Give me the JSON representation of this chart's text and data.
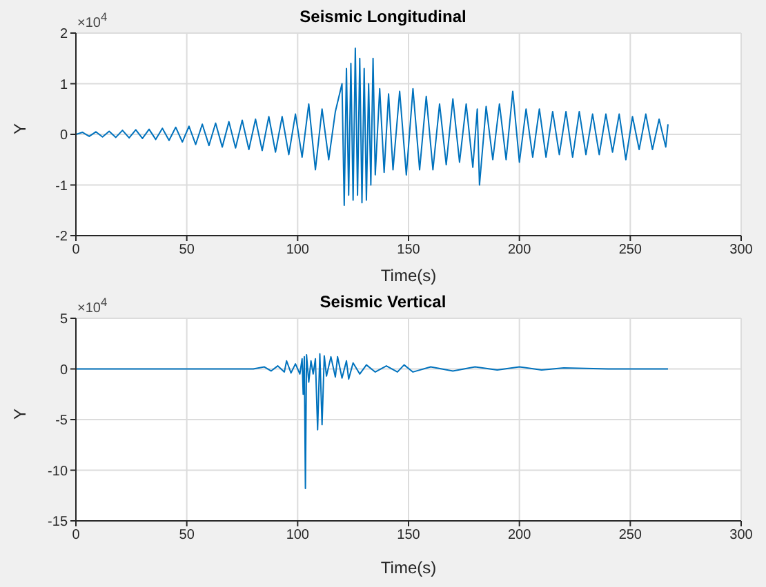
{
  "chart_data": [
    {
      "type": "line",
      "title": "Seismic Longitudinal",
      "xlabel": "Time(s)",
      "ylabel": "Y",
      "annotations": [
        "×10$^{4}$"
      ],
      "grid": true,
      "legend": false,
      "marker": "none",
      "line_style": "solid",
      "xlim": [
        0,
        300
      ],
      "xticks": [
        0,
        50,
        100,
        150,
        200,
        250,
        300
      ],
      "ylim": [
        -2,
        2
      ],
      "yticks": [
        -2,
        -1,
        0,
        1,
        2
      ],
      "x": [
        0,
        3,
        6,
        9,
        12,
        15,
        18,
        21,
        24,
        27,
        30,
        33,
        36,
        39,
        42,
        45,
        48,
        51,
        54,
        57,
        60,
        63,
        66,
        69,
        72,
        75,
        78,
        81,
        84,
        87,
        90,
        93,
        96,
        99,
        102,
        105,
        108,
        111,
        114,
        117,
        120,
        121,
        122,
        123,
        124,
        125,
        126,
        127,
        128,
        129,
        130,
        131,
        132,
        133,
        134,
        135,
        137,
        139,
        141,
        143,
        146,
        149,
        152,
        155,
        158,
        161,
        164,
        167,
        170,
        173,
        176,
        179,
        181,
        182,
        185,
        188,
        191,
        194,
        197,
        200,
        203,
        206,
        209,
        212,
        215,
        218,
        221,
        224,
        227,
        230,
        233,
        236,
        239,
        242,
        245,
        248,
        251,
        254,
        257,
        260,
        263,
        266,
        267
      ],
      "series": [
        {
          "color": "#0072bd",
          "values": [
            0,
            0.04,
            -0.04,
            0.05,
            -0.05,
            0.06,
            -0.06,
            0.08,
            -0.07,
            0.09,
            -0.08,
            0.1,
            -0.1,
            0.12,
            -0.12,
            0.14,
            -0.15,
            0.16,
            -0.2,
            0.2,
            -0.22,
            0.22,
            -0.25,
            0.25,
            -0.27,
            0.28,
            -0.3,
            0.3,
            -0.32,
            0.35,
            -0.35,
            0.35,
            -0.4,
            0.4,
            -0.45,
            0.6,
            -0.7,
            0.5,
            -0.5,
            0.45,
            1.0,
            -1.4,
            1.3,
            -1.2,
            1.4,
            -1.3,
            1.7,
            -1.2,
            1.5,
            -1.35,
            1.3,
            -1.3,
            1.0,
            -1.0,
            1.5,
            -0.8,
            0.9,
            -0.75,
            0.8,
            -0.7,
            0.85,
            -0.8,
            0.9,
            -0.7,
            0.75,
            -0.7,
            0.6,
            -0.6,
            0.7,
            -0.55,
            0.6,
            -0.65,
            0.5,
            -1.0,
            0.55,
            -0.5,
            0.6,
            -0.5,
            0.85,
            -0.55,
            0.5,
            -0.45,
            0.5,
            -0.45,
            0.45,
            -0.4,
            0.45,
            -0.45,
            0.45,
            -0.4,
            0.4,
            -0.4,
            0.4,
            -0.35,
            0.4,
            -0.5,
            0.35,
            -0.3,
            0.4,
            -0.3,
            0.3,
            -0.25,
            0.2
          ]
        }
      ]
    },
    {
      "type": "line",
      "title": "Seismic Vertical",
      "xlabel": "Time(s)",
      "ylabel": "Y",
      "annotations": [
        "×10$^{4}$"
      ],
      "grid": true,
      "legend": false,
      "marker": "none",
      "line_style": "solid",
      "xlim": [
        0,
        300
      ],
      "xticks": [
        0,
        50,
        100,
        150,
        200,
        250,
        300
      ],
      "ylim": [
        -15,
        5
      ],
      "yticks": [
        -15,
        -10,
        -5,
        0,
        5
      ],
      "x": [
        0,
        80,
        85,
        88,
        91,
        94,
        95,
        97,
        99,
        101,
        102,
        102.5,
        103,
        103.5,
        104,
        105,
        106,
        107,
        108,
        109,
        110,
        111,
        112,
        113,
        115,
        117,
        118,
        120,
        122,
        123,
        125,
        128,
        131,
        135,
        140,
        145,
        148,
        152,
        160,
        170,
        180,
        190,
        200,
        210,
        220,
        240,
        267
      ],
      "series": [
        {
          "color": "#0072bd",
          "values": [
            0,
            0,
            0.2,
            -0.2,
            0.3,
            -0.3,
            0.8,
            -0.4,
            0.5,
            -0.5,
            1.0,
            -2.5,
            1.2,
            -11.8,
            1.4,
            -1.3,
            0.8,
            -0.5,
            1.0,
            -6,
            1.5,
            -5.5,
            1.3,
            -0.7,
            1.2,
            -0.8,
            1.2,
            -0.9,
            0.8,
            -1.0,
            0.6,
            -0.5,
            0.4,
            -0.3,
            0.3,
            -0.3,
            0.4,
            -0.3,
            0.2,
            -0.2,
            0.2,
            -0.1,
            0.2,
            -0.1,
            0.1,
            0,
            0
          ]
        }
      ]
    }
  ]
}
